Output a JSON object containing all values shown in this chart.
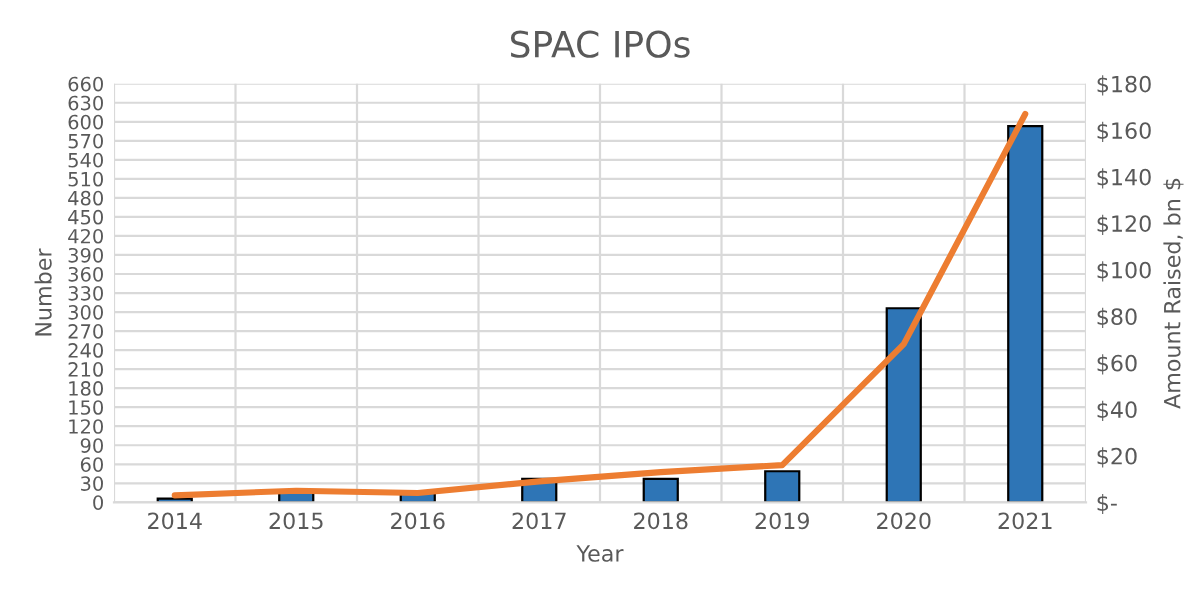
{
  "chart_data": {
    "type": "bar",
    "title": "SPAC IPOs",
    "xlabel": "Year",
    "ylabel": "Number",
    "y2label": "Amount Raised, bn $",
    "categories": [
      "2014",
      "2015",
      "2016",
      "2017",
      "2018",
      "2019",
      "2020",
      "2021"
    ],
    "series": [
      {
        "color": "#2e75b6",
        "values": [
          6,
          18,
          15,
          37,
          37,
          49,
          306,
          593
        ]
      },
      {
        "type": "line",
        "axis": "y2",
        "color": "#ed7d31",
        "values": [
          3,
          5,
          4,
          9,
          13,
          16,
          68,
          167
        ]
      }
    ],
    "ylim": [
      0,
      660
    ],
    "yticks": [
      0,
      30,
      60,
      90,
      120,
      150,
      180,
      210,
      240,
      270,
      300,
      330,
      360,
      390,
      420,
      450,
      480,
      510,
      540,
      570,
      600,
      630,
      660
    ],
    "y2lim": [
      0,
      180
    ],
    "y2ticks": [
      {
        "value": 0,
        "label": "$-"
      },
      {
        "value": 20,
        "label": "$20"
      },
      {
        "value": 40,
        "label": "$40"
      },
      {
        "value": 60,
        "label": "$60"
      },
      {
        "value": 80,
        "label": "$80"
      },
      {
        "value": 100,
        "label": "$100"
      },
      {
        "value": 120,
        "label": "$120"
      },
      {
        "value": 140,
        "label": "$140"
      },
      {
        "value": 160,
        "label": "$160"
      },
      {
        "value": 180,
        "label": "$180"
      }
    ],
    "grid": true
  }
}
